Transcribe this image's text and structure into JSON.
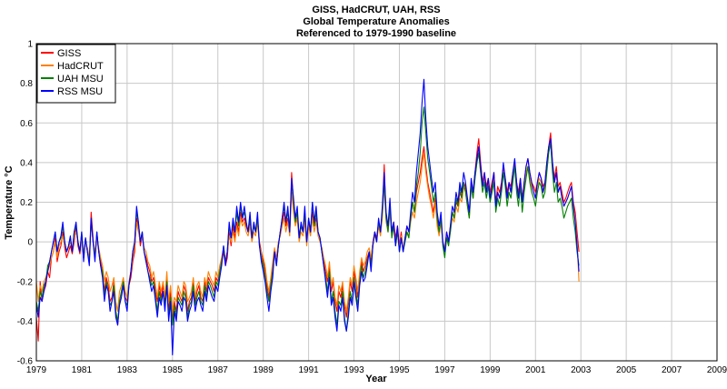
{
  "chart_data": {
    "type": "line",
    "title": [
      "GISS, HadCRUT, UAH, RSS",
      "Global Temperature Anomalies",
      "Referenced to 1979-1990 baseline"
    ],
    "xlabel": "Year",
    "ylabel": "Temperature °C",
    "xlim": [
      1979,
      2009
    ],
    "ylim": [
      -0.6,
      1.0
    ],
    "xticks": [
      1979,
      1981,
      1983,
      1985,
      1987,
      1989,
      1991,
      1993,
      1995,
      1997,
      1999,
      2001,
      2003,
      2005,
      2007,
      2009
    ],
    "yticks": [
      -0.6,
      -0.4,
      -0.2,
      0,
      0.2,
      0.4,
      0.6,
      0.8,
      1
    ],
    "ytick_labels": [
      "-0.6",
      "-0.4",
      "-0.2",
      "0",
      "0.2",
      "0.4",
      "0.6",
      "0.8",
      "1"
    ],
    "grid": true,
    "legend_position": "top-left",
    "x_step": 0.0833333,
    "series": [
      {
        "name": "GISS",
        "color": "#ff0000",
        "values": [
          -0.38,
          -0.5,
          -0.2,
          -0.3,
          -0.25,
          -0.22,
          -0.15,
          -0.18,
          -0.08,
          -0.05,
          0.02,
          -0.1,
          -0.05,
          -0.02,
          0.05,
          -0.03,
          -0.08,
          -0.05,
          -0.02,
          -0.06,
          0.0,
          0.08,
          -0.02,
          -0.06,
          0.03,
          -0.08,
          0.02,
          -0.05,
          -0.1,
          0.15,
          0.02,
          -0.08,
          0.03,
          -0.05,
          -0.1,
          -0.15,
          -0.25,
          -0.18,
          -0.22,
          -0.3,
          -0.28,
          -0.2,
          -0.35,
          -0.42,
          -0.3,
          -0.25,
          -0.2,
          -0.28,
          -0.3,
          -0.22,
          -0.18,
          -0.1,
          -0.05,
          0.12,
          0.08,
          -0.02,
          0.03,
          -0.05,
          -0.08,
          -0.12,
          -0.15,
          -0.2,
          -0.18,
          -0.25,
          -0.3,
          -0.22,
          -0.28,
          -0.22,
          -0.3,
          -0.18,
          -0.35,
          -0.25,
          -0.4,
          -0.3,
          -0.35,
          -0.25,
          -0.28,
          -0.3,
          -0.22,
          -0.25,
          -0.35,
          -0.3,
          -0.28,
          -0.2,
          -0.3,
          -0.25,
          -0.22,
          -0.28,
          -0.3,
          -0.2,
          -0.25,
          -0.18,
          -0.2,
          -0.22,
          -0.25,
          -0.18,
          -0.2,
          -0.15,
          -0.1,
          -0.05,
          -0.12,
          -0.08,
          0.05,
          -0.02,
          0.08,
          0.02,
          0.1,
          0.05,
          0.15,
          0.1,
          0.12,
          0.08,
          0.05,
          0.1,
          0.02,
          0.08,
          0.05,
          0.12,
          0.0,
          -0.05,
          -0.1,
          -0.15,
          -0.22,
          -0.28,
          -0.2,
          -0.12,
          -0.05,
          -0.1,
          -0.02,
          0.05,
          0.1,
          0.15,
          0.08,
          0.12,
          0.05,
          0.35,
          0.2,
          0.1,
          0.15,
          0.02,
          0.08,
          0.05,
          0.12,
          0.0,
          0.1,
          0.05,
          0.15,
          0.08,
          0.12,
          0.05,
          0.02,
          -0.05,
          -0.1,
          -0.15,
          -0.2,
          -0.12,
          -0.25,
          -0.2,
          -0.3,
          -0.35,
          -0.25,
          -0.28,
          -0.22,
          -0.32,
          -0.38,
          -0.3,
          -0.2,
          -0.25,
          -0.15,
          -0.2,
          -0.28,
          -0.18,
          -0.1,
          -0.15,
          -0.12,
          -0.08,
          -0.05,
          -0.1,
          0.0,
          0.05,
          0.02,
          0.1,
          0.05,
          0.15,
          0.39,
          0.12,
          0.08,
          0.18,
          0.05,
          0.1,
          0.02,
          0.08,
          -0.02,
          0.05,
          -0.05,
          0.02,
          0.08,
          0.05,
          0.12,
          0.2,
          0.15,
          0.25,
          0.3,
          0.35,
          0.42,
          0.48,
          0.38,
          0.3,
          0.25,
          0.2,
          0.15,
          0.22,
          0.1,
          0.05,
          0.12,
          0.0,
          -0.05,
          0.05,
          0.0,
          0.08,
          0.15,
          0.12,
          0.2,
          0.18,
          0.25,
          0.22,
          0.3,
          0.28,
          0.2,
          0.15,
          0.3,
          0.25,
          0.35,
          0.45,
          0.52,
          0.4,
          0.3,
          0.35,
          0.28,
          0.32,
          0.25,
          0.3,
          0.35,
          0.2,
          0.28,
          0.25,
          0.3,
          0.38,
          0.32,
          0.25,
          0.3,
          0.28,
          0.35,
          0.4,
          0.3,
          0.25,
          0.32,
          0.22,
          0.3,
          0.38,
          0.42,
          0.35,
          0.3,
          0.28,
          0.25,
          0.3,
          0.35,
          0.32,
          0.28,
          0.3,
          0.4,
          0.48,
          0.55,
          0.4,
          0.32,
          0.38,
          0.28,
          0.3,
          0.25,
          0.2,
          0.22,
          0.25,
          0.28,
          0.3,
          0.2,
          0.15,
          0.05,
          -0.05
        ]
      },
      {
        "name": "HadCRUT",
        "color": "#ff8000",
        "values": [
          -0.2,
          -0.3,
          -0.22,
          -0.25,
          -0.2,
          -0.18,
          -0.15,
          -0.12,
          -0.08,
          -0.05,
          0.0,
          -0.08,
          -0.02,
          0.0,
          0.03,
          -0.02,
          -0.05,
          -0.03,
          0.0,
          -0.04,
          0.02,
          0.05,
          0.0,
          -0.04,
          0.02,
          -0.05,
          0.0,
          -0.03,
          -0.08,
          0.1,
          0.0,
          -0.05,
          0.02,
          -0.03,
          -0.08,
          -0.12,
          -0.2,
          -0.15,
          -0.18,
          -0.25,
          -0.22,
          -0.18,
          -0.3,
          -0.35,
          -0.25,
          -0.22,
          -0.18,
          -0.25,
          -0.28,
          -0.2,
          -0.15,
          -0.08,
          -0.02,
          0.1,
          0.05,
          0.0,
          0.02,
          -0.03,
          -0.05,
          -0.1,
          -0.12,
          -0.18,
          -0.15,
          -0.22,
          -0.28,
          -0.2,
          -0.25,
          -0.2,
          -0.28,
          -0.15,
          -0.3,
          -0.22,
          -0.35,
          -0.28,
          -0.3,
          -0.22,
          -0.25,
          -0.28,
          -0.2,
          -0.22,
          -0.3,
          -0.28,
          -0.25,
          -0.18,
          -0.28,
          -0.22,
          -0.2,
          -0.25,
          -0.28,
          -0.18,
          -0.22,
          -0.15,
          -0.18,
          -0.2,
          -0.22,
          -0.15,
          -0.18,
          -0.12,
          -0.08,
          -0.03,
          -0.1,
          -0.05,
          0.03,
          0.0,
          0.05,
          0.0,
          0.08,
          0.03,
          0.12,
          0.08,
          0.1,
          0.05,
          0.03,
          0.08,
          0.0,
          0.05,
          0.03,
          0.1,
          -0.02,
          -0.05,
          -0.08,
          -0.12,
          -0.2,
          -0.25,
          -0.18,
          -0.1,
          -0.03,
          -0.08,
          0.0,
          0.03,
          0.08,
          0.12,
          0.05,
          0.1,
          0.03,
          0.25,
          0.15,
          0.08,
          0.12,
          0.0,
          0.05,
          0.03,
          0.1,
          -0.02,
          0.08,
          0.03,
          0.12,
          0.05,
          0.1,
          0.03,
          0.0,
          -0.03,
          -0.08,
          -0.12,
          -0.18,
          -0.1,
          -0.22,
          -0.18,
          -0.28,
          -0.32,
          -0.22,
          -0.25,
          -0.2,
          -0.3,
          -0.35,
          -0.28,
          -0.18,
          -0.22,
          -0.12,
          -0.18,
          -0.25,
          -0.15,
          -0.08,
          -0.12,
          -0.1,
          -0.05,
          -0.03,
          -0.08,
          0.0,
          0.03,
          0.0,
          0.08,
          0.03,
          0.12,
          0.28,
          0.1,
          0.05,
          0.15,
          0.03,
          0.08,
          0.0,
          0.05,
          -0.03,
          0.03,
          -0.03,
          0.0,
          0.05,
          0.03,
          0.1,
          0.15,
          0.12,
          0.2,
          0.25,
          0.3,
          0.38,
          0.45,
          0.35,
          0.28,
          0.22,
          0.18,
          0.12,
          0.2,
          0.08,
          0.03,
          0.1,
          0.0,
          -0.03,
          0.03,
          0.0,
          0.05,
          0.12,
          0.1,
          0.18,
          0.15,
          0.22,
          0.2,
          0.28,
          0.25,
          0.18,
          0.12,
          0.28,
          0.22,
          0.32,
          0.4,
          0.45,
          0.35,
          0.28,
          0.32,
          0.25,
          0.3,
          0.22,
          0.28,
          0.32,
          0.18,
          0.25,
          0.22,
          0.28,
          0.35,
          0.3,
          0.22,
          0.28,
          0.25,
          0.32,
          0.38,
          0.28,
          0.22,
          0.3,
          0.2,
          0.28,
          0.35,
          0.38,
          0.32,
          0.28,
          0.25,
          0.22,
          0.28,
          0.32,
          0.3,
          0.25,
          0.28,
          0.38,
          0.45,
          0.5,
          0.38,
          0.3,
          0.35,
          0.25,
          0.28,
          0.22,
          0.18,
          0.2,
          0.22,
          0.25,
          0.28,
          0.18,
          0.12,
          0.0,
          -0.2
        ]
      },
      {
        "name": "UAH MSU",
        "color": "#008000",
        "values": [
          -0.3,
          -0.35,
          -0.25,
          -0.28,
          -0.22,
          -0.2,
          -0.12,
          -0.1,
          -0.05,
          0.0,
          0.05,
          -0.05,
          0.0,
          0.02,
          0.08,
          0.0,
          -0.05,
          -0.02,
          0.02,
          -0.05,
          0.05,
          0.08,
          0.0,
          -0.05,
          0.05,
          -0.08,
          0.02,
          -0.05,
          -0.1,
          0.12,
          0.0,
          -0.08,
          0.05,
          -0.05,
          -0.12,
          -0.15,
          -0.28,
          -0.2,
          -0.25,
          -0.32,
          -0.3,
          -0.22,
          -0.35,
          -0.4,
          -0.3,
          -0.25,
          -0.2,
          -0.3,
          -0.32,
          -0.22,
          -0.15,
          -0.05,
          0.0,
          0.15,
          0.1,
          0.0,
          0.05,
          -0.05,
          -0.1,
          -0.15,
          -0.18,
          -0.22,
          -0.2,
          -0.28,
          -0.35,
          -0.25,
          -0.3,
          -0.25,
          -0.32,
          -0.2,
          -0.38,
          -0.28,
          -0.42,
          -0.32,
          -0.38,
          -0.28,
          -0.3,
          -0.32,
          -0.25,
          -0.28,
          -0.38,
          -0.32,
          -0.3,
          -0.22,
          -0.32,
          -0.28,
          -0.25,
          -0.3,
          -0.32,
          -0.22,
          -0.28,
          -0.2,
          -0.22,
          -0.25,
          -0.28,
          -0.2,
          -0.22,
          -0.15,
          -0.1,
          -0.02,
          -0.1,
          -0.05,
          0.08,
          0.02,
          0.1,
          0.05,
          0.15,
          0.08,
          0.18,
          0.12,
          0.15,
          0.1,
          0.05,
          0.12,
          0.02,
          0.08,
          0.05,
          0.12,
          -0.02,
          -0.08,
          -0.12,
          -0.18,
          -0.25,
          -0.3,
          -0.22,
          -0.15,
          -0.05,
          -0.12,
          -0.02,
          0.05,
          0.12,
          0.18,
          0.1,
          0.15,
          0.05,
          0.3,
          0.2,
          0.1,
          0.15,
          0.02,
          0.08,
          0.05,
          0.15,
          0.0,
          0.12,
          0.05,
          0.2,
          0.08,
          0.15,
          0.05,
          0.02,
          -0.05,
          -0.12,
          -0.18,
          -0.25,
          -0.15,
          -0.3,
          -0.25,
          -0.35,
          -0.42,
          -0.3,
          -0.32,
          -0.25,
          -0.38,
          -0.45,
          -0.35,
          -0.25,
          -0.3,
          -0.18,
          -0.25,
          -0.32,
          -0.2,
          -0.12,
          -0.18,
          -0.15,
          -0.1,
          -0.05,
          -0.12,
          -0.02,
          0.05,
          0.0,
          0.1,
          0.05,
          0.15,
          0.3,
          0.12,
          0.05,
          0.18,
          0.02,
          0.08,
          -0.02,
          0.05,
          -0.05,
          0.02,
          -0.05,
          0.0,
          0.05,
          0.02,
          0.12,
          0.2,
          0.15,
          0.28,
          0.35,
          0.45,
          0.6,
          0.68,
          0.55,
          0.42,
          0.35,
          0.28,
          0.2,
          0.25,
          0.12,
          0.05,
          0.12,
          -0.02,
          -0.08,
          0.02,
          -0.02,
          0.05,
          0.15,
          0.12,
          0.22,
          0.18,
          0.28,
          0.22,
          0.3,
          0.25,
          0.18,
          0.12,
          0.28,
          0.22,
          0.32,
          0.4,
          0.45,
          0.35,
          0.25,
          0.3,
          0.22,
          0.28,
          0.2,
          0.25,
          0.3,
          0.15,
          0.22,
          0.18,
          0.25,
          0.35,
          0.28,
          0.18,
          0.25,
          0.22,
          0.3,
          0.38,
          0.25,
          0.18,
          0.28,
          0.15,
          0.25,
          0.32,
          0.38,
          0.3,
          0.25,
          0.22,
          0.18,
          0.25,
          0.3,
          0.28,
          0.22,
          0.25,
          0.35,
          0.45,
          0.5,
          0.35,
          0.25,
          0.3,
          0.2,
          0.22,
          0.18,
          0.12,
          0.15,
          0.18,
          0.2,
          0.22,
          0.12,
          0.05,
          -0.05,
          -0.12
        ]
      },
      {
        "name": "RSS MSU",
        "color": "#0000ff",
        "values": [
          -0.32,
          -0.38,
          -0.28,
          -0.3,
          -0.25,
          -0.2,
          -0.15,
          -0.1,
          -0.05,
          0.0,
          0.05,
          -0.05,
          0.0,
          0.03,
          0.1,
          0.0,
          -0.05,
          -0.02,
          0.03,
          -0.05,
          0.05,
          0.1,
          0.0,
          -0.05,
          0.05,
          -0.1,
          0.02,
          -0.05,
          -0.12,
          0.12,
          0.0,
          -0.1,
          0.05,
          -0.05,
          -0.12,
          -0.18,
          -0.3,
          -0.22,
          -0.25,
          -0.35,
          -0.3,
          -0.25,
          -0.38,
          -0.42,
          -0.32,
          -0.28,
          -0.22,
          -0.3,
          -0.35,
          -0.22,
          -0.15,
          -0.05,
          0.0,
          0.18,
          0.1,
          0.0,
          0.05,
          -0.05,
          -0.1,
          -0.15,
          -0.2,
          -0.25,
          -0.22,
          -0.3,
          -0.38,
          -0.28,
          -0.32,
          -0.25,
          -0.35,
          -0.22,
          -0.4,
          -0.3,
          -0.57,
          -0.35,
          -0.4,
          -0.3,
          -0.32,
          -0.35,
          -0.28,
          -0.3,
          -0.4,
          -0.35,
          -0.32,
          -0.25,
          -0.35,
          -0.3,
          -0.28,
          -0.32,
          -0.35,
          -0.25,
          -0.3,
          -0.22,
          -0.25,
          -0.28,
          -0.3,
          -0.22,
          -0.25,
          -0.18,
          -0.12,
          -0.02,
          -0.12,
          -0.05,
          0.1,
          0.02,
          0.12,
          0.05,
          0.18,
          0.1,
          0.2,
          0.12,
          0.18,
          0.1,
          0.05,
          0.15,
          0.02,
          0.1,
          0.05,
          0.15,
          -0.02,
          -0.1,
          -0.15,
          -0.2,
          -0.28,
          -0.35,
          -0.25,
          -0.18,
          -0.05,
          -0.12,
          -0.02,
          0.05,
          0.12,
          0.2,
          0.1,
          0.18,
          0.05,
          0.32,
          0.22,
          0.12,
          0.18,
          0.02,
          0.1,
          0.05,
          0.18,
          0.0,
          0.12,
          0.05,
          0.2,
          0.1,
          0.18,
          0.05,
          0.02,
          -0.05,
          -0.12,
          -0.2,
          -0.28,
          -0.18,
          -0.32,
          -0.28,
          -0.38,
          -0.45,
          -0.32,
          -0.35,
          -0.28,
          -0.4,
          -0.45,
          -0.38,
          -0.28,
          -0.32,
          -0.2,
          -0.28,
          -0.35,
          -0.22,
          -0.15,
          -0.2,
          -0.18,
          -0.12,
          -0.05,
          -0.15,
          -0.02,
          0.05,
          0.0,
          0.12,
          0.05,
          0.18,
          0.35,
          0.15,
          0.08,
          0.22,
          0.05,
          0.1,
          -0.02,
          0.08,
          -0.05,
          0.02,
          -0.05,
          0.02,
          0.08,
          0.05,
          0.15,
          0.25,
          0.2,
          0.35,
          0.45,
          0.55,
          0.7,
          0.82,
          0.62,
          0.48,
          0.4,
          0.32,
          0.25,
          0.3,
          0.15,
          0.08,
          0.15,
          0.0,
          -0.05,
          0.05,
          0.0,
          0.08,
          0.18,
          0.15,
          0.25,
          0.2,
          0.3,
          0.25,
          0.35,
          0.3,
          0.22,
          0.15,
          0.32,
          0.25,
          0.35,
          0.42,
          0.48,
          0.38,
          0.28,
          0.35,
          0.25,
          0.32,
          0.22,
          0.28,
          0.35,
          0.18,
          0.25,
          0.22,
          0.28,
          0.4,
          0.32,
          0.22,
          0.3,
          0.25,
          0.35,
          0.42,
          0.3,
          0.22,
          0.32,
          0.2,
          0.3,
          0.38,
          0.42,
          0.35,
          0.3,
          0.25,
          0.22,
          0.3,
          0.35,
          0.32,
          0.25,
          0.3,
          0.4,
          0.48,
          0.52,
          0.4,
          0.3,
          0.35,
          0.25,
          0.28,
          0.22,
          0.18,
          0.2,
          0.22,
          0.25,
          0.28,
          0.18,
          0.1,
          -0.02,
          -0.15
        ]
      }
    ]
  }
}
